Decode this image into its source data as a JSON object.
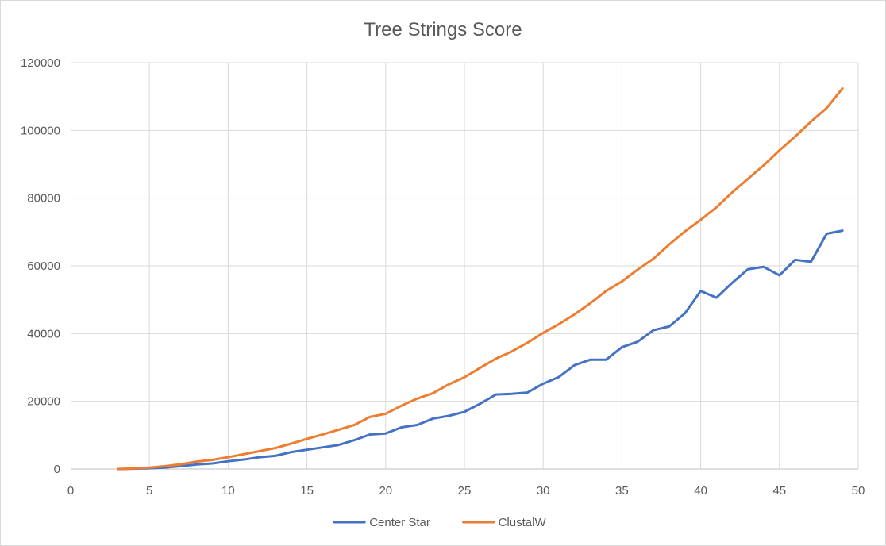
{
  "chart_data": {
    "type": "line",
    "title": "Tree Strings Score",
    "xlabel": "",
    "ylabel": "",
    "xlim": [
      0,
      50
    ],
    "ylim": [
      0,
      120000
    ],
    "x_ticks": [
      0,
      5,
      10,
      15,
      20,
      25,
      30,
      35,
      40,
      45,
      50
    ],
    "y_ticks": [
      0,
      20000,
      40000,
      60000,
      80000,
      100000,
      120000
    ],
    "grid": true,
    "legend_position": "bottom",
    "x": [
      3,
      4,
      5,
      6,
      7,
      8,
      9,
      10,
      11,
      12,
      13,
      14,
      15,
      16,
      17,
      18,
      19,
      20,
      21,
      22,
      23,
      24,
      25,
      26,
      27,
      28,
      29,
      30,
      31,
      32,
      33,
      34,
      35,
      36,
      37,
      38,
      39,
      40,
      41,
      42,
      43,
      44,
      45,
      46,
      47,
      48,
      49
    ],
    "series": [
      {
        "name": "Center Star",
        "color": "#4472c4",
        "values": [
          0,
          100,
          200,
          450,
          850,
          1350,
          1650,
          2300,
          2800,
          3500,
          3900,
          5000,
          5700,
          6400,
          7100,
          8500,
          10200,
          10500,
          12300,
          13000,
          14900,
          15700,
          16900,
          19300,
          22000,
          22200,
          22600,
          25200,
          27200,
          30700,
          32300,
          32300,
          36000,
          37600,
          41000,
          42100,
          46000,
          52600,
          50600,
          55000,
          59000,
          59700,
          57200,
          61800,
          61200,
          69500,
          70400
        ]
      },
      {
        "name": "ClustalW",
        "color": "#ed7d31",
        "values": [
          0,
          150,
          400,
          850,
          1400,
          2200,
          2700,
          3500,
          4400,
          5300,
          6200,
          7500,
          8900,
          10200,
          11600,
          13000,
          15400,
          16300,
          18700,
          20800,
          22400,
          25000,
          27100,
          29900,
          32600,
          34700,
          37300,
          40200,
          42800,
          45700,
          49000,
          52600,
          55400,
          58900,
          62100,
          66300,
          70200,
          73600,
          77300,
          81700,
          85700,
          89700,
          94100,
          98200,
          102600,
          106600,
          112400
        ]
      }
    ]
  }
}
